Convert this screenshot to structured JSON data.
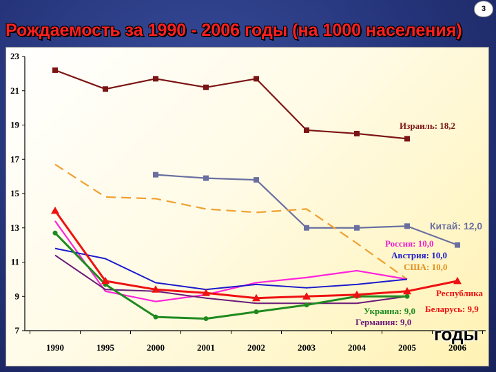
{
  "slide": {
    "title": "Рождаемость за 1990 - 2006 годы (на 1000 населения)",
    "page_number": "3",
    "x_axis_label": "годы"
  },
  "chart_data": {
    "type": "line",
    "title": "Рождаемость за 1990 - 2006 годы (на 1000 населения)",
    "xlabel": "годы",
    "ylabel": "",
    "categories": [
      "1990",
      "1995",
      "2000",
      "2001",
      "2002",
      "2003",
      "2004",
      "2005",
      "2006"
    ],
    "yticks": [
      7,
      9,
      11,
      13,
      15,
      17,
      19,
      21,
      23
    ],
    "ylim": [
      7,
      23
    ],
    "series": [
      {
        "name": "Израиль",
        "label": "Израиль: 18,2",
        "color": "#7b1414",
        "dash": false,
        "marker": "square",
        "width": 2.2,
        "values": [
          22.2,
          21.1,
          21.7,
          21.2,
          21.7,
          18.7,
          18.5,
          18.2,
          null
        ]
      },
      {
        "name": "Китай",
        "label": "Китай: 12,0",
        "color": "#6a6fa0",
        "dash": false,
        "marker": "square",
        "width": 2.2,
        "values": [
          null,
          null,
          16.1,
          15.9,
          15.8,
          13.0,
          13.0,
          13.1,
          12.0
        ]
      },
      {
        "name": "США",
        "label": "США: 10,0",
        "color": "#f0a030",
        "dash": true,
        "marker": "none",
        "width": 2.2,
        "values": [
          16.7,
          14.8,
          14.7,
          14.1,
          13.9,
          14.1,
          12.1,
          10.0,
          null
        ]
      },
      {
        "name": "Россия",
        "label": "Россия: 10,0",
        "color": "#ff22dd",
        "dash": false,
        "marker": "none",
        "width": 2.2,
        "values": [
          13.4,
          9.3,
          8.7,
          9.1,
          9.8,
          10.1,
          10.5,
          10.0,
          null
        ]
      },
      {
        "name": "Австрия",
        "label": "Австрия: 10,0",
        "color": "#1a1acc",
        "dash": false,
        "marker": "none",
        "width": 2,
        "values": [
          11.8,
          11.2,
          9.8,
          9.4,
          9.7,
          9.5,
          9.7,
          10.0,
          null
        ]
      },
      {
        "name": "Германия",
        "label": "Германия: 9,0",
        "color": "#6a1a7a",
        "dash": false,
        "marker": "none",
        "width": 2,
        "values": [
          11.4,
          9.4,
          9.3,
          8.9,
          8.6,
          8.6,
          8.6,
          9.0,
          null
        ]
      },
      {
        "name": "Украина",
        "label": "Украина: 9,0",
        "color": "#1e8a1e",
        "dash": false,
        "marker": "circle",
        "width": 3,
        "values": [
          12.7,
          9.7,
          7.8,
          7.7,
          8.1,
          8.5,
          9.0,
          9.0,
          null
        ]
      },
      {
        "name": "Республика Беларусь",
        "label_line1": "Республика",
        "label_line2": "Беларусь: 9,9",
        "color": "#ee1111",
        "dash": false,
        "marker": "triangle",
        "width": 3,
        "values": [
          14.0,
          9.9,
          9.4,
          9.2,
          8.9,
          9.0,
          9.1,
          9.3,
          9.9
        ]
      }
    ]
  }
}
